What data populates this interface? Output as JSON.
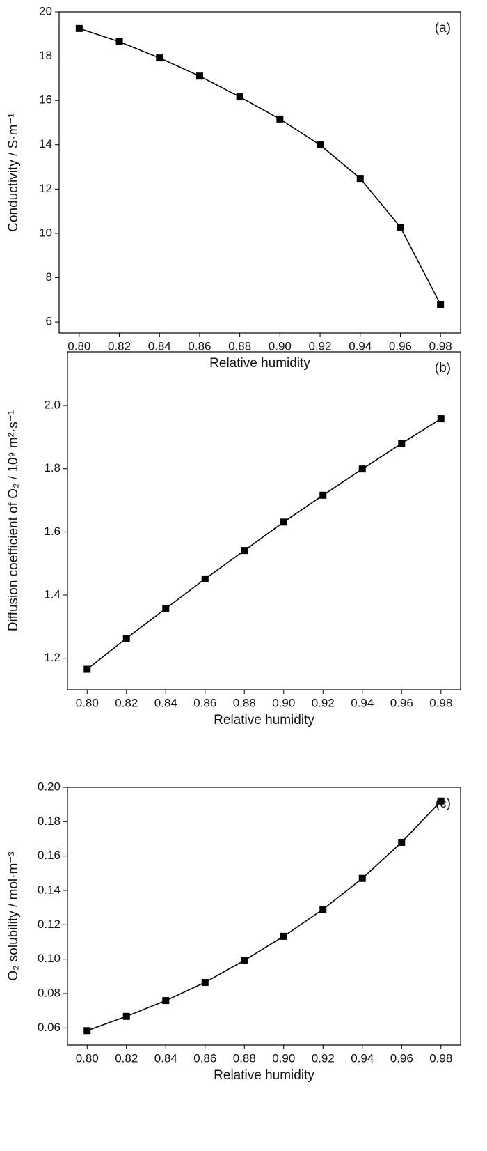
{
  "chart_data": [
    {
      "type": "line",
      "annotation": "(a)",
      "x_label": "Relative humidity",
      "y_label": "Conductivity / S·m⁻¹",
      "x": [
        0.8,
        0.82,
        0.84,
        0.86,
        0.88,
        0.9,
        0.92,
        0.94,
        0.96,
        0.98
      ],
      "series": [
        {
          "color": "#000000",
          "values": [
            19.25,
            18.65,
            17.92,
            17.1,
            16.16,
            15.16,
            13.99,
            12.48,
            10.28,
            6.79
          ]
        }
      ],
      "xlim": [
        0.79,
        0.99
      ],
      "xticks": [
        {
          "value": 0.8,
          "label": "0.80"
        },
        0.82,
        0.84,
        0.86,
        0.88,
        {
          "value": 0.9,
          "label": "0.90"
        },
        0.92,
        0.94,
        0.96,
        0.98
      ],
      "ylim": [
        5.5,
        20
      ],
      "yticks": [
        6,
        8,
        10,
        12,
        14,
        16,
        18,
        20
      ]
    },
    {
      "type": "line",
      "annotation": "(b)",
      "x_label": "Relative humidity",
      "y_label": "Diffusion coefficient of O₂ / 10⁹ m²·s⁻¹",
      "x": [
        0.8,
        0.82,
        0.84,
        0.86,
        0.88,
        0.9,
        0.92,
        0.94,
        0.96,
        0.98
      ],
      "series": [
        {
          "color": "#000000",
          "values": [
            1.165,
            1.263,
            1.357,
            1.451,
            1.541,
            1.631,
            1.716,
            1.799,
            1.88,
            1.958
          ]
        }
      ],
      "xlim": [
        0.79,
        0.99
      ],
      "xticks": [
        {
          "value": 0.8,
          "label": "0.80"
        },
        0.82,
        0.84,
        0.86,
        0.88,
        {
          "value": 0.9,
          "label": "0.90"
        },
        0.92,
        0.94,
        0.96,
        0.98
      ],
      "ylim": [
        1.1,
        2.17
      ],
      "yticks": [
        1.2,
        1.4,
        1.6,
        1.8,
        {
          "value": 2,
          "label": "2.0"
        }
      ]
    },
    {
      "type": "line",
      "annotation": "(c)",
      "x_label": "Relative humidity",
      "y_label": "O₂ solubility / mol·m⁻³",
      "x": [
        0.8,
        0.82,
        0.84,
        0.86,
        0.88,
        0.9,
        0.92,
        0.94,
        0.96,
        0.98
      ],
      "series": [
        {
          "color": "#000000",
          "values": [
            0.0584,
            0.0667,
            0.0759,
            0.0865,
            0.0993,
            0.1133,
            0.129,
            0.147,
            0.168,
            0.192
          ]
        }
      ],
      "xlim": [
        0.79,
        0.99
      ],
      "xticks": [
        {
          "value": 0.8,
          "label": "0.80"
        },
        0.82,
        0.84,
        0.86,
        0.88,
        {
          "value": 0.9,
          "label": "0.90"
        },
        0.92,
        0.94,
        0.96,
        0.98
      ],
      "ylim": [
        0.05,
        0.2
      ],
      "yticks": [
        0.06,
        0.08,
        {
          "value": 0.1,
          "label": "0.10"
        },
        0.12,
        0.14,
        0.16,
        0.18,
        {
          "value": 0.2,
          "label": "0.20"
        }
      ]
    }
  ]
}
